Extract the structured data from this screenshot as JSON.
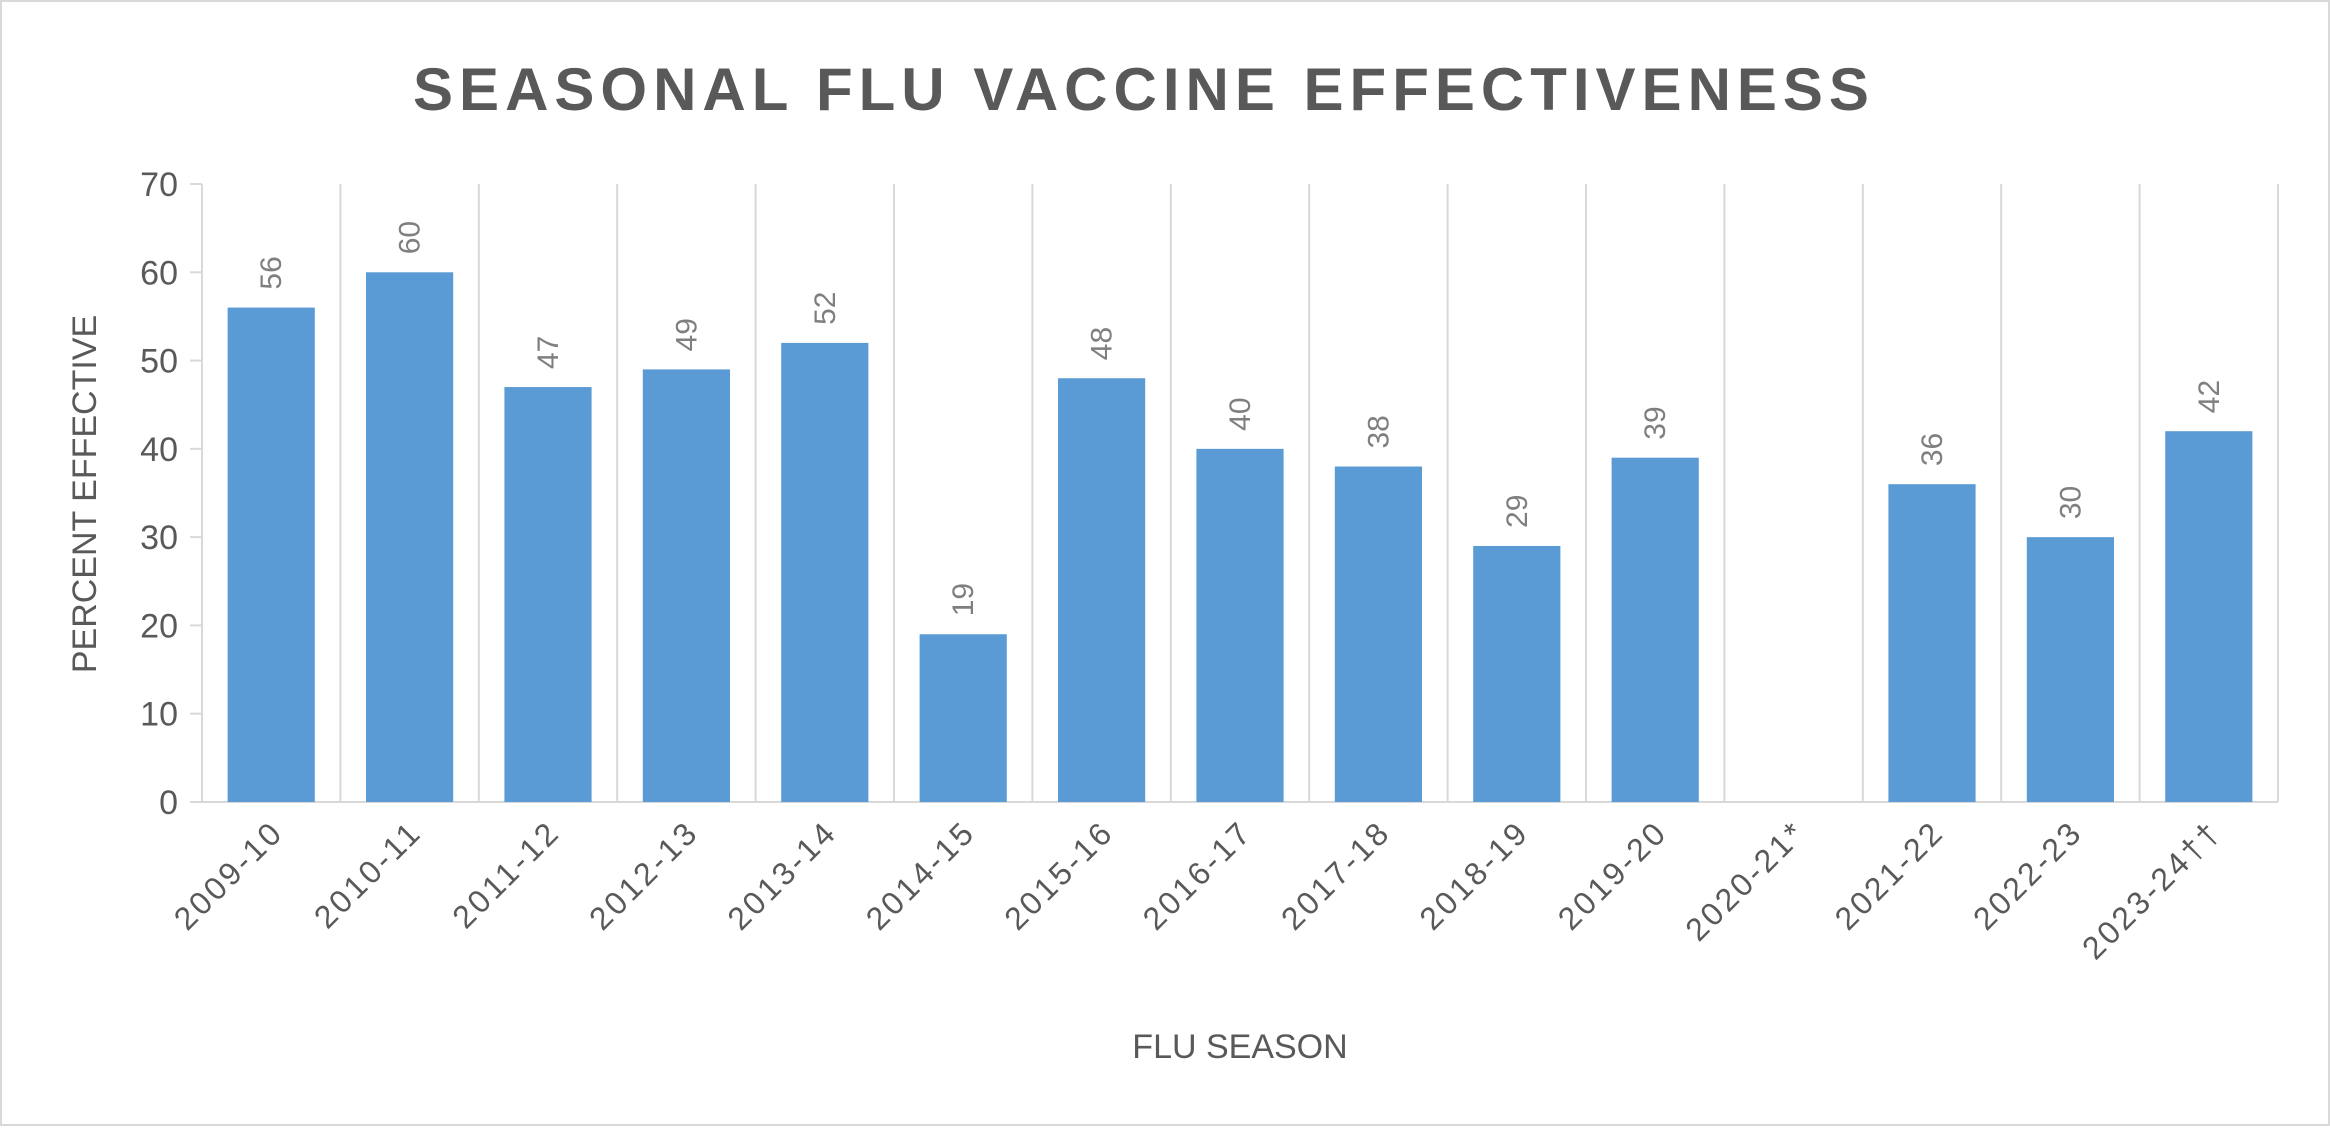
{
  "chart_data": {
    "type": "bar",
    "title": "SEASONAL FLU VACCINE EFFECTIVENESS",
    "xlabel": "FLU SEASON",
    "ylabel": "PERCENT EFFECTIVE",
    "ylim": [
      0,
      70
    ],
    "yticks": [
      0,
      10,
      20,
      30,
      40,
      50,
      60,
      70
    ],
    "categories": [
      "2009-10",
      "2010-11",
      "2011-12",
      "2012-13",
      "2013-14",
      "2014-15",
      "2015-16",
      "2016-17",
      "2017-18",
      "2018-19",
      "2019-20",
      "2020-21*",
      "2021-22",
      "2022-23",
      "2023-24††"
    ],
    "values": [
      56,
      60,
      47,
      49,
      52,
      19,
      48,
      40,
      38,
      29,
      39,
      null,
      36,
      30,
      42
    ],
    "data_labels": true,
    "grid": "vertical",
    "legend": "none",
    "colors": {
      "bar": "#5b9bd5",
      "title": "#595959",
      "axis_text": "#595959",
      "data_label": "#7f7f7f",
      "grid": "#d9d9d9"
    }
  }
}
